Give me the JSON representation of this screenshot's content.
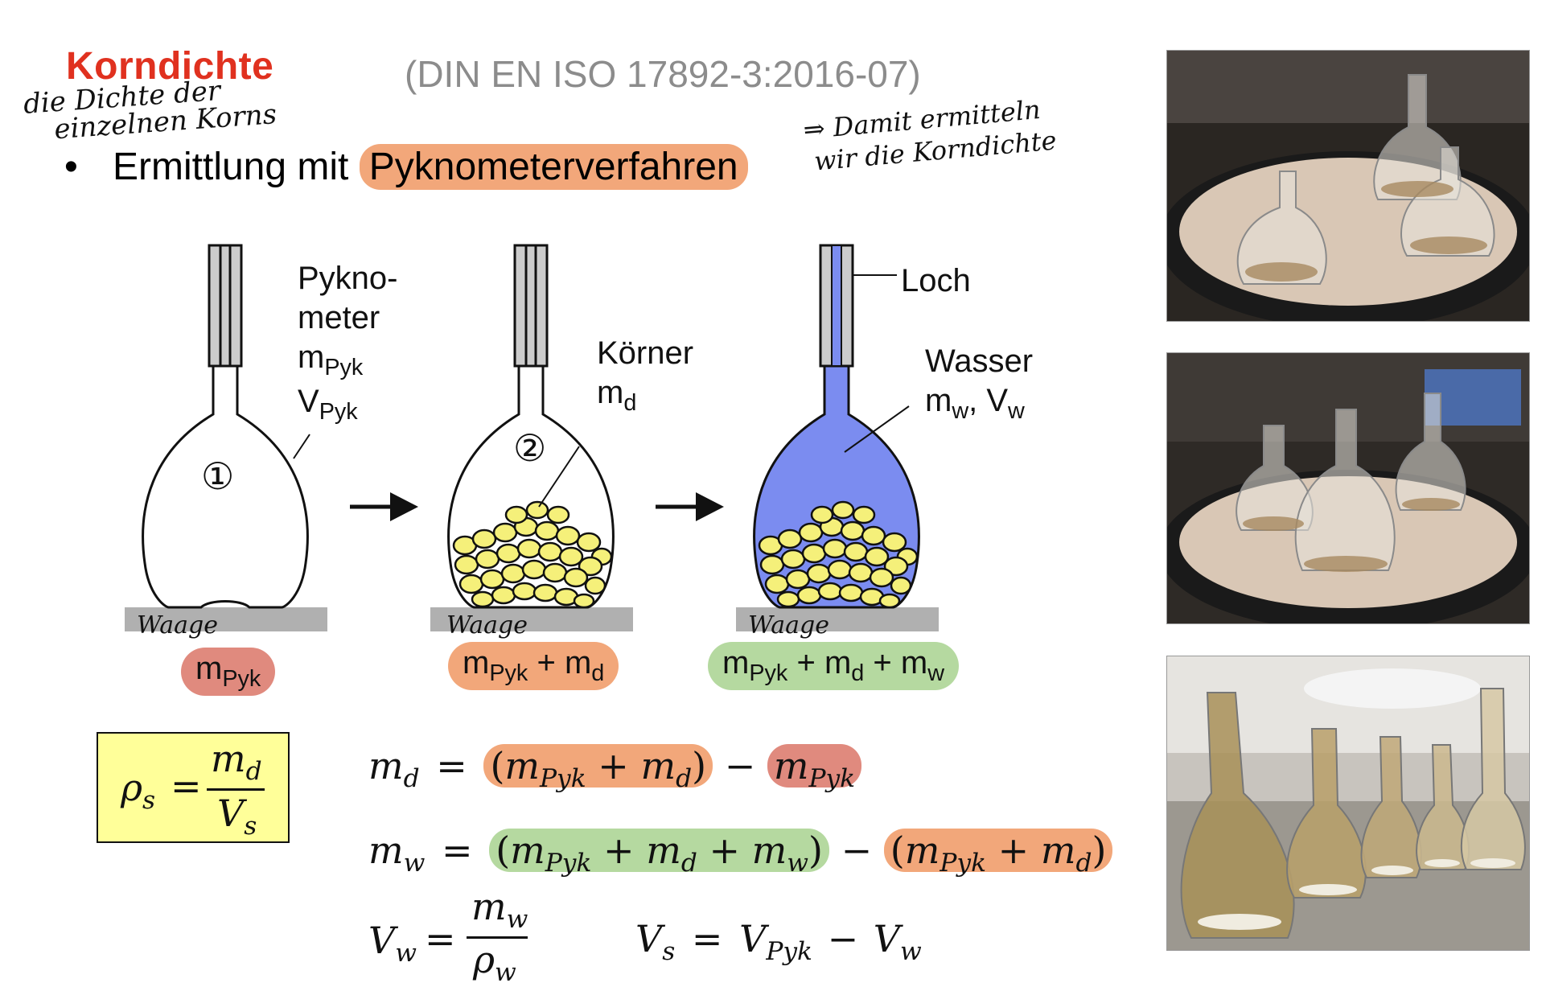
{
  "header": {
    "title": "Korndichte",
    "norm": "(DIN EN ISO 17892-3:2016-07)"
  },
  "bullet": {
    "symbol": "•",
    "text": "Ermittlung mit ",
    "highlight": "Pyknometerverfahren"
  },
  "handwriting": {
    "note_left_1": "die Dichte der",
    "note_left_2": "einzelnen Korns",
    "note_right_1": "⇒ Damit ermitteln",
    "note_right_2": "wir die Korndichte",
    "step1": "①",
    "step2": "②",
    "scale1": "Waage",
    "scale2": "Waage",
    "scale3": "Waage"
  },
  "diagram": {
    "flask1_label_line1": "Pykno-",
    "flask1_label_line2": "meter",
    "flask1_m": "m",
    "flask1_m_sub": "Pyk",
    "flask1_v": "V",
    "flask1_v_sub": "Pyk",
    "flask2_label": "Körner",
    "flask2_m": "m",
    "flask2_m_sub": "d",
    "flask3_hole": "Loch",
    "flask3_label": "Wasser",
    "flask3_m": "m",
    "flask3_m_sub": "w",
    "flask3_sep": ", ",
    "flask3_v": "V",
    "flask3_v_sub": "w",
    "arrow": "→"
  },
  "masses": {
    "m": "m",
    "pyk": "Pyk",
    "d": "d",
    "w": "w",
    "plus": " + "
  },
  "colors": {
    "title_red": "#e0311f",
    "orange_highlight": "#f2a77a",
    "red_highlight": "#e08a7e",
    "green_highlight": "#b5d9a0",
    "water_blue": "#7b8cf0",
    "grain_yellow": "#f5f07a",
    "formula_box": "#ffff99",
    "scale_gray": "#b0b0b0"
  },
  "formulas": {
    "rho": "ρ",
    "s": "s",
    "eq": "=",
    "m": "m",
    "d": "d",
    "w": "w",
    "V": "V",
    "Pyk": "Pyk",
    "minus": "−",
    "plus": "+",
    "lp": "(",
    "rp": ")"
  }
}
